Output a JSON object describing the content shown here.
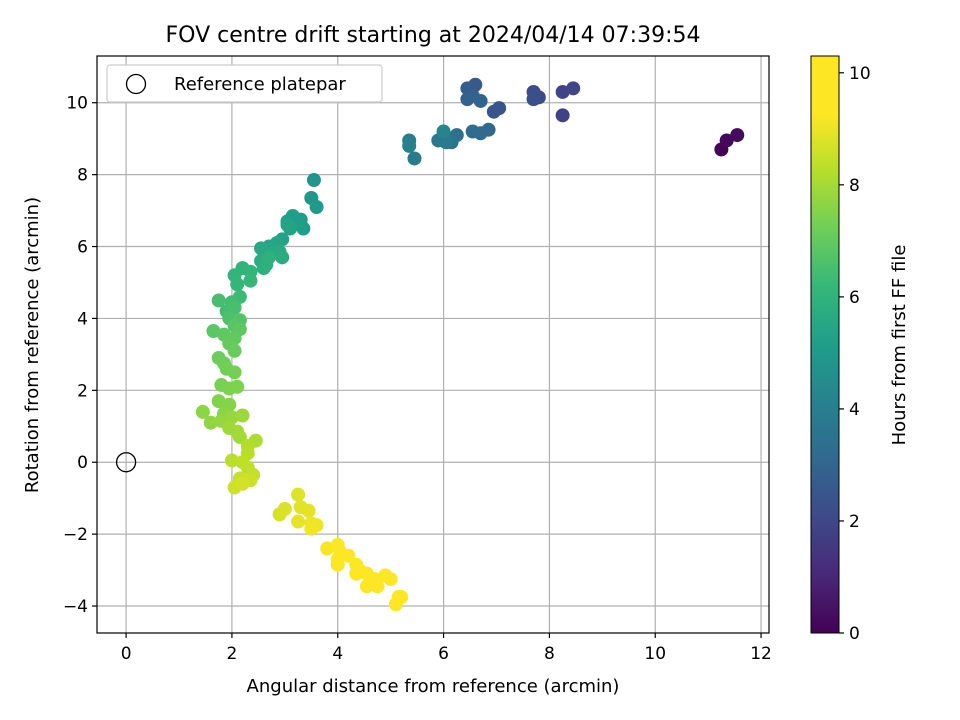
{
  "chart_data": {
    "type": "scatter",
    "title": "FOV centre drift starting at 2024/04/14 07:39:54",
    "xlabel": "Angular distance from reference (arcmin)",
    "ylabel": "Rotation from reference (arcmin)",
    "xlim": [
      -0.55,
      12.15
    ],
    "ylim": [
      -4.75,
      11.3
    ],
    "xticks": [
      0,
      2,
      4,
      6,
      8,
      10,
      12
    ],
    "yticks": [
      -4,
      -2,
      0,
      2,
      4,
      6,
      8,
      10
    ],
    "grid": true,
    "legend": {
      "position": "top-left",
      "entries": [
        {
          "label": "Reference platepar",
          "marker": "open-circle"
        }
      ]
    },
    "reference_point": {
      "x": 0,
      "y": 0
    },
    "colorbar": {
      "label": "Hours from first FF file",
      "colormap": "viridis",
      "range": [
        0,
        10.3
      ],
      "ticks": [
        0,
        2,
        4,
        6,
        8,
        10
      ]
    },
    "series": [
      {
        "marker": "filled-circle",
        "points": [
          [
            11.25,
            8.7,
            0.1
          ],
          [
            11.35,
            8.95,
            0.2
          ],
          [
            11.55,
            9.1,
            0.3
          ],
          [
            8.25,
            9.65,
            1.8
          ],
          [
            8.25,
            10.3,
            1.9
          ],
          [
            8.45,
            10.4,
            2.0
          ],
          [
            7.8,
            10.15,
            2.1
          ],
          [
            7.7,
            10.3,
            2.2
          ],
          [
            7.7,
            10.1,
            2.3
          ],
          [
            7.05,
            9.85,
            2.4
          ],
          [
            6.95,
            9.75,
            2.5
          ],
          [
            6.6,
            10.5,
            2.6
          ],
          [
            6.45,
            10.4,
            2.7
          ],
          [
            6.55,
            10.2,
            2.8
          ],
          [
            6.45,
            10.1,
            2.9
          ],
          [
            6.7,
            10.05,
            3.0
          ],
          [
            6.85,
            9.25,
            3.1
          ],
          [
            6.7,
            9.15,
            3.2
          ],
          [
            6.55,
            9.2,
            3.3
          ],
          [
            6.25,
            9.1,
            3.4
          ],
          [
            6.15,
            8.9,
            3.5
          ],
          [
            6.0,
            9.1,
            3.6
          ],
          [
            5.9,
            8.95,
            3.7
          ],
          [
            6.05,
            8.9,
            3.8
          ],
          [
            5.45,
            8.45,
            3.9
          ],
          [
            5.35,
            8.95,
            4.0
          ],
          [
            5.35,
            8.8,
            4.1
          ],
          [
            6.0,
            9.2,
            4.2
          ],
          [
            3.55,
            7.85,
            4.8
          ],
          [
            3.5,
            7.35,
            4.9
          ],
          [
            3.6,
            7.1,
            5.0
          ],
          [
            3.2,
            6.75,
            5.05
          ],
          [
            3.3,
            6.75,
            5.1
          ],
          [
            3.15,
            6.85,
            5.15
          ],
          [
            3.35,
            6.5,
            5.2
          ],
          [
            3.05,
            6.7,
            5.25
          ],
          [
            3.1,
            6.5,
            5.3
          ],
          [
            2.95,
            6.2,
            5.35
          ],
          [
            3.05,
            6.6,
            5.4
          ],
          [
            2.85,
            6.1,
            5.45
          ],
          [
            2.7,
            6.0,
            5.5
          ],
          [
            2.55,
            5.95,
            5.55
          ],
          [
            2.75,
            5.8,
            5.6
          ],
          [
            2.9,
            5.85,
            5.65
          ],
          [
            2.95,
            5.7,
            5.7
          ],
          [
            2.55,
            5.6,
            5.75
          ],
          [
            2.65,
            5.5,
            5.8
          ],
          [
            2.6,
            5.4,
            5.85
          ],
          [
            2.7,
            5.7,
            5.9
          ],
          [
            2.2,
            5.4,
            6.0
          ],
          [
            2.35,
            5.3,
            6.05
          ],
          [
            2.05,
            5.2,
            6.1
          ],
          [
            2.1,
            4.95,
            6.15
          ],
          [
            2.35,
            5.05,
            6.2
          ],
          [
            2.15,
            4.6,
            6.3
          ],
          [
            2.0,
            4.45,
            6.4
          ],
          [
            1.9,
            4.2,
            6.45
          ],
          [
            1.75,
            4.5,
            6.5
          ],
          [
            2.05,
            4.3,
            6.55
          ],
          [
            1.95,
            4.0,
            6.6
          ],
          [
            2.15,
            3.95,
            6.7
          ],
          [
            2.05,
            3.8,
            6.8
          ],
          [
            1.65,
            3.65,
            6.85
          ],
          [
            2.15,
            3.7,
            6.9
          ],
          [
            1.85,
            3.55,
            6.95
          ],
          [
            2.05,
            3.45,
            7.0
          ],
          [
            1.95,
            3.3,
            7.05
          ],
          [
            2.05,
            3.1,
            7.1
          ],
          [
            1.75,
            2.9,
            7.15
          ],
          [
            1.85,
            2.75,
            7.2
          ],
          [
            1.9,
            2.6,
            7.25
          ],
          [
            2.05,
            2.5,
            7.3
          ],
          [
            1.8,
            2.15,
            7.35
          ],
          [
            1.95,
            2.05,
            7.4
          ],
          [
            2.1,
            2.1,
            7.45
          ],
          [
            1.75,
            1.7,
            7.5
          ],
          [
            1.95,
            1.6,
            7.55
          ],
          [
            1.85,
            1.35,
            7.6
          ],
          [
            1.45,
            1.4,
            7.65
          ],
          [
            1.6,
            1.1,
            7.7
          ],
          [
            1.8,
            1.15,
            7.75
          ],
          [
            2.0,
            1.25,
            7.8
          ],
          [
            2.2,
            1.3,
            7.85
          ],
          [
            1.95,
            0.95,
            7.9
          ],
          [
            2.1,
            0.85,
            7.95
          ],
          [
            2.15,
            0.7,
            8.0
          ],
          [
            2.45,
            0.6,
            8.1
          ],
          [
            2.3,
            0.45,
            8.2
          ],
          [
            2.3,
            0.25,
            8.25
          ],
          [
            2.0,
            0.05,
            8.3
          ],
          [
            2.2,
            0.0,
            8.35
          ],
          [
            2.3,
            -0.15,
            8.4
          ],
          [
            2.4,
            -0.35,
            8.45
          ],
          [
            2.15,
            -0.45,
            8.5
          ],
          [
            2.35,
            -0.5,
            8.55
          ],
          [
            2.05,
            -0.7,
            8.6
          ],
          [
            2.2,
            -0.6,
            8.65
          ],
          [
            2.9,
            -1.45,
            8.7
          ],
          [
            3.0,
            -1.3,
            8.75
          ],
          [
            3.25,
            -0.9,
            8.8
          ],
          [
            3.3,
            -1.25,
            8.85
          ],
          [
            3.45,
            -1.35,
            8.9
          ],
          [
            3.25,
            -1.65,
            8.95
          ],
          [
            3.5,
            -1.7,
            9.0
          ],
          [
            3.6,
            -1.75,
            9.05
          ],
          [
            3.5,
            -1.85,
            9.1
          ],
          [
            3.8,
            -2.4,
            9.2
          ],
          [
            4.0,
            -2.3,
            9.25
          ],
          [
            4.05,
            -2.5,
            9.3
          ],
          [
            4.0,
            -2.7,
            9.35
          ],
          [
            4.2,
            -2.6,
            9.4
          ],
          [
            4.0,
            -2.85,
            9.45
          ],
          [
            4.35,
            -2.85,
            9.5
          ],
          [
            4.45,
            -3.05,
            9.55
          ],
          [
            4.35,
            -3.1,
            9.6
          ],
          [
            4.55,
            -3.1,
            9.65
          ],
          [
            4.7,
            -3.25,
            9.7
          ],
          [
            4.9,
            -3.15,
            9.75
          ],
          [
            5.0,
            -3.25,
            9.8
          ],
          [
            4.55,
            -3.45,
            9.85
          ],
          [
            4.75,
            -3.45,
            9.9
          ],
          [
            5.15,
            -3.75,
            10.0
          ],
          [
            5.1,
            -3.95,
            10.1
          ],
          [
            5.2,
            -3.75,
            10.2
          ]
        ]
      }
    ]
  }
}
